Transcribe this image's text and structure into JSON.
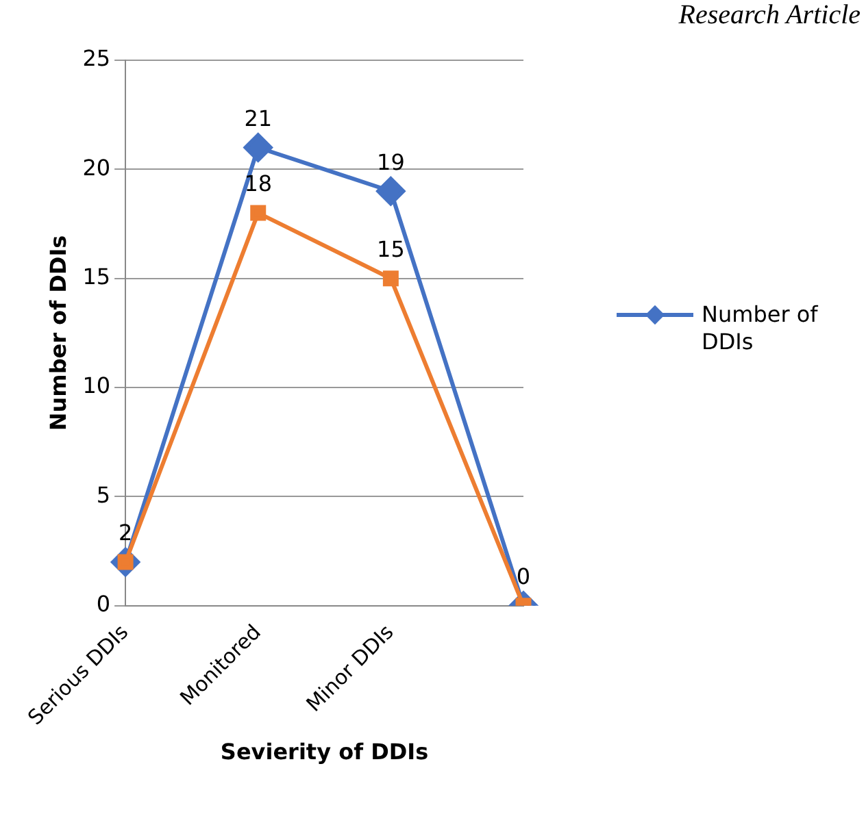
{
  "chart_data": {
    "type": "line",
    "xlabel": "Sevierity of DDIs",
    "ylabel": "Number of DDIs",
    "categories": [
      "Serious DDIs",
      "Monitored",
      "Minor DDIs",
      null
    ],
    "series": [
      {
        "name": "Number of DDIs",
        "color": "#4472c4",
        "marker": "diamond",
        "values": [
          2,
          21,
          19,
          0
        ],
        "value_labels": [
          "2",
          "21",
          "19",
          "0"
        ]
      },
      {
        "color": "#ed7d31",
        "marker": "square",
        "values": [
          2,
          18,
          15,
          0
        ],
        "value_labels": [
          null,
          "18",
          "15",
          null
        ]
      }
    ],
    "ylim": [
      0,
      25
    ],
    "yticks": [
      0,
      5,
      10,
      15,
      20,
      25
    ],
    "grid": "y",
    "legend": "right",
    "line_style": "solid",
    "annotations": [
      "Research Article"
    ]
  }
}
